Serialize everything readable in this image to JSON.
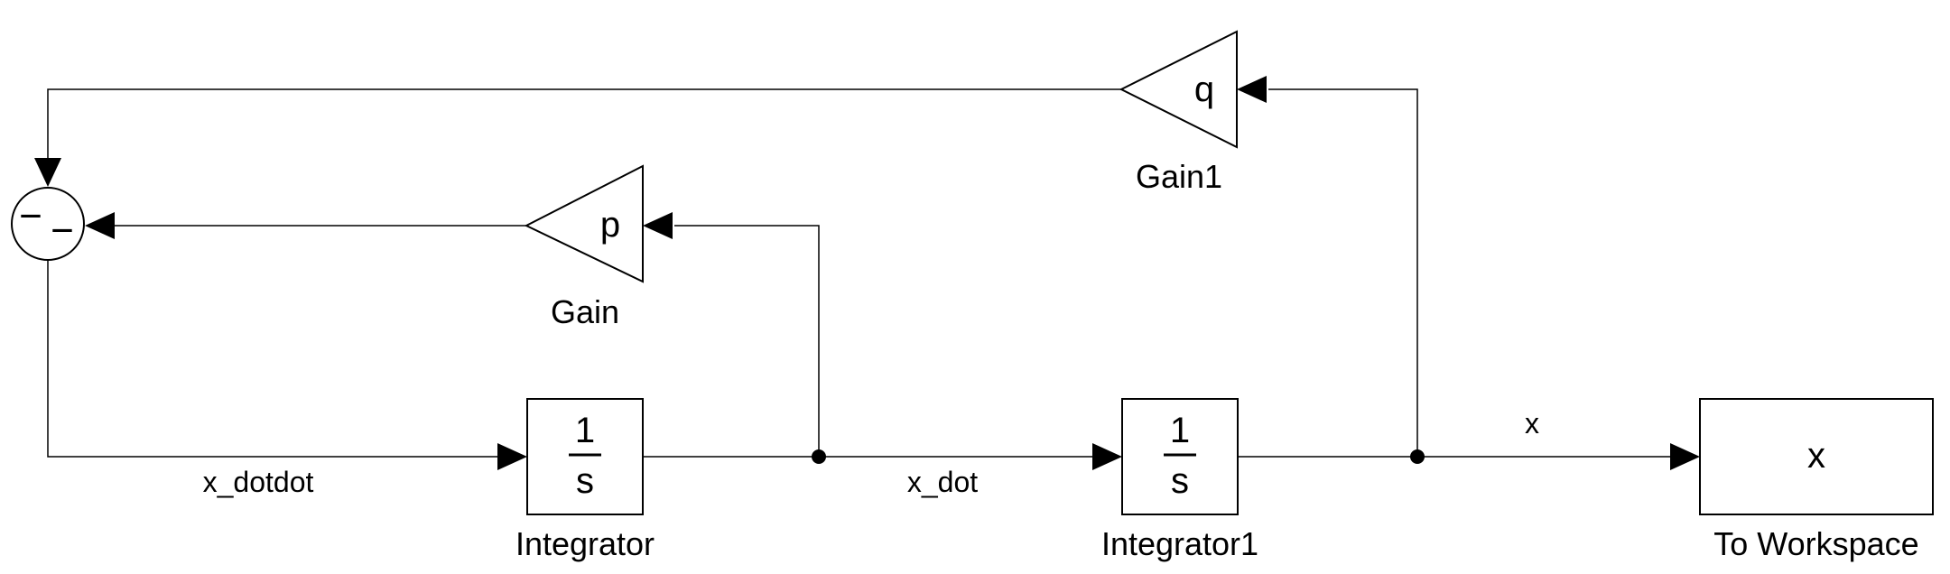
{
  "blocks": {
    "sum": {
      "signs_top": "−",
      "signs_bottom": "−"
    },
    "gain": {
      "name": "Gain",
      "value": "p"
    },
    "gain1": {
      "name": "Gain1",
      "value": "q"
    },
    "integrator": {
      "name": "Integrator",
      "numerator": "1",
      "denominator": "s"
    },
    "integrator1": {
      "name": "Integrator1",
      "numerator": "1",
      "denominator": "s"
    },
    "to_workspace": {
      "name": "To Workspace",
      "variable": "x"
    }
  },
  "signals": {
    "x_dotdot": "x_dotdot",
    "x_dot": "x_dot",
    "x": "x"
  }
}
